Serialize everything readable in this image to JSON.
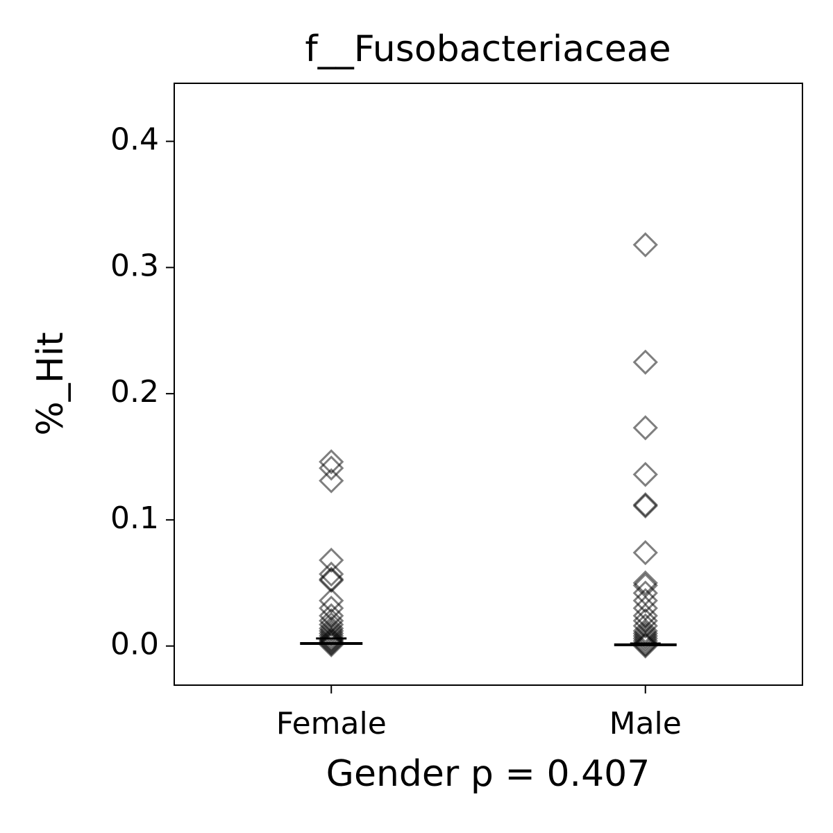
{
  "chart_data": {
    "type": "strip",
    "title": "f__Fusobacteriaceae",
    "xlabel": "Gender p = 0.407",
    "ylabel": "%_Hit",
    "categories": [
      "Female",
      "Male"
    ],
    "xlim": [
      -0.5,
      1.5
    ],
    "ylim": [
      -0.031,
      0.446
    ],
    "yticks": [
      {
        "value": 0,
        "label": "0.0"
      },
      0.1,
      0.2,
      0.3,
      0.4
    ],
    "color": "#000000",
    "series": [
      {
        "values": [
          0.146,
          0.141,
          0.131,
          0.068,
          0.057,
          0.053,
          0.052,
          0.036,
          0.03,
          0.024,
          0.02,
          0.017,
          0.014,
          0.012,
          0.01,
          0.008,
          0.006,
          0.005,
          0.004,
          0.003,
          0.002,
          0.001
        ]
      },
      {
        "values": [
          0.318,
          0.225,
          0.173,
          0.136,
          0.112,
          0.111,
          0.074,
          0.05,
          0.048,
          0.042,
          0.036,
          0.03,
          0.024,
          0.02,
          0.016,
          0.012,
          0.01,
          0.008,
          0.006,
          0.004,
          0.002,
          0.001,
          0.0
        ]
      }
    ],
    "medians": [
      0.002,
      0.001
    ],
    "whisker_caps": [
      0.006,
      0.002
    ]
  }
}
